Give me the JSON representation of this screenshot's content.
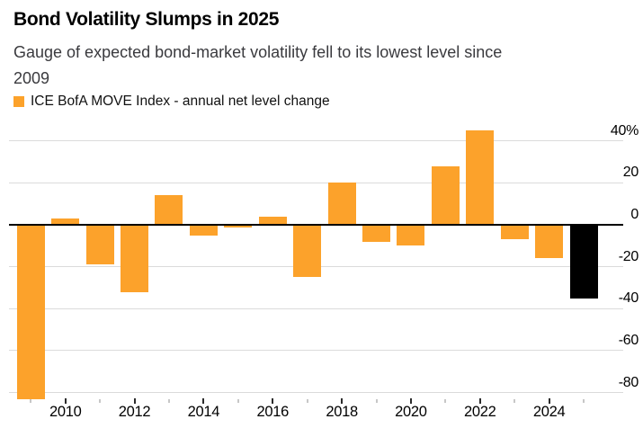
{
  "header": {
    "title": "Bond Volatility Slumps in 2025",
    "subtitle_lines": [
      "Gauge of expected bond-market volatility fell to its lowest level since",
      "2009"
    ]
  },
  "legend": {
    "label": "ICE BofA MOVE Index - annual net level change",
    "swatch_color": "#fca22b"
  },
  "chart_data": {
    "type": "bar",
    "title": "Bond Volatility Slumps in 2025",
    "series_name": "ICE BofA MOVE Index - annual net level change",
    "x": [
      2009,
      2010,
      2011,
      2012,
      2013,
      2014,
      2015,
      2016,
      2017,
      2018,
      2019,
      2020,
      2021,
      2022,
      2023,
      2024,
      2025
    ],
    "values": [
      -83,
      3,
      -19,
      -32,
      14,
      -5,
      -1.5,
      4,
      -25,
      20,
      -8,
      -10,
      28,
      45,
      -7,
      -16,
      -35
    ],
    "unit": "%",
    "ylim": [
      -88,
      47
    ],
    "yticks": [
      40,
      20,
      0,
      -20,
      -40,
      -60,
      -80
    ],
    "ytick_labels": [
      "40%",
      "20",
      "0",
      "-20",
      "-40",
      "-60",
      "-80"
    ],
    "xtick_years_labeled": [
      2010,
      2012,
      2014,
      2016,
      2018,
      2020,
      2022,
      2024
    ],
    "grid": "horizontal-only",
    "legend_position": "top-left",
    "colors": {
      "bar_default": "#fca22b",
      "bar_highlight": "#000000",
      "highlight_year": 2025,
      "zero_line": "#000000",
      "gridline": "#dbdbdb"
    }
  }
}
